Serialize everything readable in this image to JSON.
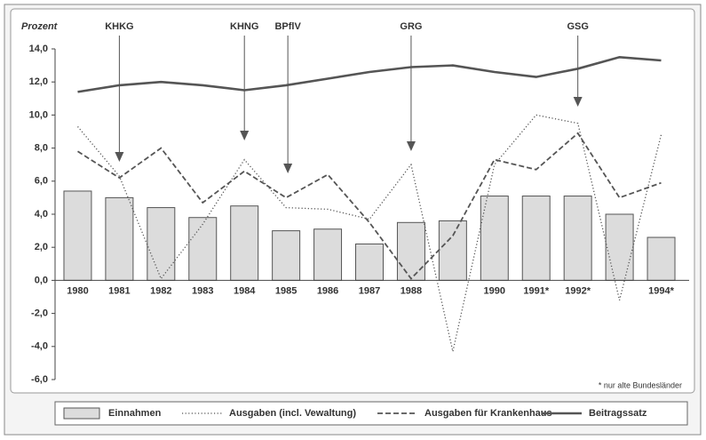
{
  "chart_data": {
    "type": "bar-line",
    "y_label": "Prozent",
    "footnote": "* nur alte Bundesländer",
    "categories": [
      "1980",
      "1981",
      "1982",
      "1983",
      "1984",
      "1985",
      "1986",
      "1987",
      "1988",
      null,
      "1990",
      "1991*",
      "1992*",
      null,
      "1994*"
    ],
    "series": [
      {
        "name": "Einnahmen",
        "kind": "bar",
        "color": "#dcdcdc",
        "values": [
          5.4,
          5.0,
          4.4,
          3.8,
          4.5,
          3.0,
          3.1,
          2.2,
          3.5,
          3.6,
          5.1,
          5.1,
          5.1,
          4.0,
          2.6
        ]
      },
      {
        "name": "Ausgaben (incl. Vewaltung)",
        "kind": "line",
        "dash": "dotted",
        "color": "#555555",
        "values": [
          9.3,
          6.3,
          0.1,
          3.4,
          7.3,
          4.4,
          4.3,
          3.7,
          7.0,
          -4.3,
          7.0,
          10.0,
          9.5,
          -1.2,
          8.8
        ]
      },
      {
        "name": "Ausgaben für Krankenhaus",
        "kind": "line",
        "dash": "dashed",
        "color": "#555555",
        "values": [
          7.8,
          6.2,
          8.0,
          4.7,
          6.6,
          5.0,
          6.4,
          3.5,
          0.1,
          2.7,
          7.3,
          6.7,
          8.9,
          5.0,
          5.9
        ]
      },
      {
        "name": "Beitragssatz",
        "kind": "line",
        "dash": "solid",
        "color": "#555555",
        "values": [
          11.4,
          11.8,
          12.0,
          11.8,
          11.5,
          11.8,
          12.2,
          12.6,
          12.9,
          13.0,
          12.6,
          12.3,
          12.8,
          13.5,
          13.3
        ]
      }
    ],
    "annotations": [
      "KHKG",
      "KHNG",
      "BPflV",
      "GRG",
      "GSG"
    ],
    "ylim": [
      -6,
      14
    ],
    "yticks": [
      {
        "value": -6,
        "label": "-6,0"
      },
      {
        "value": -4,
        "label": "-4,0"
      },
      {
        "value": -2,
        "label": "-2,0"
      },
      {
        "value": 0,
        "label": "0,0"
      },
      {
        "value": 2,
        "label": "2,0"
      },
      {
        "value": 4,
        "label": "4,0"
      },
      {
        "value": 6,
        "label": "6,0"
      },
      {
        "value": 8,
        "label": "8,0"
      },
      {
        "value": 10,
        "label": "10,0"
      },
      {
        "value": 12,
        "label": "12,0"
      },
      {
        "value": 14,
        "label": "14,0"
      }
    ]
  }
}
